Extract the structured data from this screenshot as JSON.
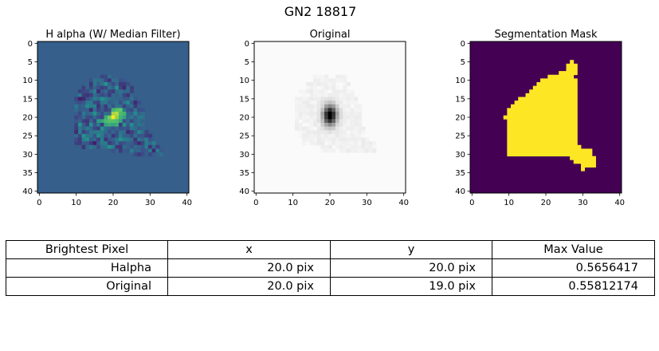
{
  "title": "GN2 18817",
  "chart_data": [
    {
      "type": "heatmap",
      "title": "H alpha (W/ Median Filter)",
      "colormap": "viridis",
      "xlim": [
        0,
        40
      ],
      "ylim": [
        40,
        0
      ],
      "xticks": [
        0,
        10,
        20,
        30,
        40
      ],
      "yticks": [
        0,
        5,
        10,
        15,
        20,
        25,
        30,
        35,
        40
      ],
      "background_value": 0.0,
      "peak": {
        "x": 20,
        "y": 20,
        "value": 0.5656417
      },
      "region_rows": [
        [
          9,
          17,
          19
        ],
        [
          10,
          14,
          23
        ],
        [
          11,
          13,
          24
        ],
        [
          12,
          12,
          25
        ],
        [
          13,
          11,
          25
        ],
        [
          14,
          10,
          26
        ],
        [
          15,
          10,
          26
        ],
        [
          16,
          10,
          27
        ],
        [
          17,
          10,
          27
        ],
        [
          18,
          10,
          28
        ],
        [
          19,
          10,
          28
        ],
        [
          20,
          10,
          28
        ],
        [
          21,
          10,
          28
        ],
        [
          22,
          10,
          28
        ],
        [
          23,
          10,
          28
        ],
        [
          24,
          10,
          29
        ],
        [
          25,
          10,
          30
        ],
        [
          26,
          10,
          30
        ],
        [
          27,
          10,
          31
        ],
        [
          28,
          10,
          32
        ],
        [
          29,
          19,
          33
        ],
        [
          30,
          26,
          33
        ]
      ],
      "hot_pixels": [
        {
          "x": 20,
          "y": 20,
          "v": 1.0
        },
        {
          "x": 21,
          "y": 19,
          "v": 0.85
        },
        {
          "x": 20,
          "y": 19,
          "v": 0.8
        },
        {
          "x": 21,
          "y": 20,
          "v": 0.75
        },
        {
          "x": 19,
          "y": 20,
          "v": 0.7
        },
        {
          "x": 22,
          "y": 18,
          "v": 0.65
        },
        {
          "x": 19,
          "y": 21,
          "v": 0.6
        },
        {
          "x": 20,
          "y": 21,
          "v": 0.6
        },
        {
          "x": 21,
          "y": 18,
          "v": 0.6
        },
        {
          "x": 22,
          "y": 19,
          "v": 0.55
        },
        {
          "x": 18,
          "y": 21,
          "v": 0.55
        },
        {
          "x": 20,
          "y": 18,
          "v": 0.5
        },
        {
          "x": 23,
          "y": 19,
          "v": 0.5
        },
        {
          "x": 22,
          "y": 20,
          "v": 0.5
        },
        {
          "x": 18,
          "y": 20,
          "v": 0.45
        },
        {
          "x": 19,
          "y": 22,
          "v": 0.45
        },
        {
          "x": 21,
          "y": 22,
          "v": 0.45
        },
        {
          "x": 17,
          "y": 21,
          "v": 0.4
        },
        {
          "x": 23,
          "y": 20,
          "v": 0.4
        },
        {
          "x": 22,
          "y": 21,
          "v": 0.4
        },
        {
          "x": 18,
          "y": 22,
          "v": 0.4
        },
        {
          "x": 21,
          "y": 21,
          "v": 0.55
        },
        {
          "x": 16,
          "y": 21,
          "v": 0.35
        },
        {
          "x": 20,
          "y": 22,
          "v": 0.4
        },
        {
          "x": 18,
          "y": 11,
          "v": 0.3
        },
        {
          "x": 21,
          "y": 12,
          "v": 0.3
        },
        {
          "x": 17,
          "y": 15,
          "v": 0.28
        },
        {
          "x": 15,
          "y": 19,
          "v": 0.3
        },
        {
          "x": 13,
          "y": 17,
          "v": 0.25
        },
        {
          "x": 12,
          "y": 25,
          "v": 0.3
        },
        {
          "x": 13,
          "y": 26,
          "v": 0.28
        },
        {
          "x": 24,
          "y": 16,
          "v": 0.25
        },
        {
          "x": 25,
          "y": 22,
          "v": 0.28
        },
        {
          "x": 16,
          "y": 25,
          "v": 0.27
        },
        {
          "x": 27,
          "y": 24,
          "v": 0.25
        },
        {
          "x": 19,
          "y": 28,
          "v": 0.3
        },
        {
          "x": 22,
          "y": 26,
          "v": 0.3
        },
        {
          "x": 14,
          "y": 22,
          "v": 0.28
        },
        {
          "x": 11,
          "y": 22,
          "v": 0.3
        },
        {
          "x": 26,
          "y": 19,
          "v": 0.25
        },
        {
          "x": 17,
          "y": 23,
          "v": 0.3
        },
        {
          "x": 23,
          "y": 22,
          "v": 0.3
        },
        {
          "x": 11,
          "y": 15,
          "v": -0.3
        },
        {
          "x": 12,
          "y": 15,
          "v": -0.25
        },
        {
          "x": 13,
          "y": 14,
          "v": -0.2
        },
        {
          "x": 14,
          "y": 18,
          "v": -0.25
        },
        {
          "x": 16,
          "y": 17,
          "v": -0.2
        },
        {
          "x": 23,
          "y": 12,
          "v": -0.25
        },
        {
          "x": 24,
          "y": 14,
          "v": -0.2
        },
        {
          "x": 24,
          "y": 24,
          "v": -0.25
        },
        {
          "x": 26,
          "y": 26,
          "v": -0.2
        },
        {
          "x": 15,
          "y": 27,
          "v": -0.3
        },
        {
          "x": 10,
          "y": 24,
          "v": -0.25
        },
        {
          "x": 12,
          "y": 28,
          "v": -0.2
        },
        {
          "x": 19,
          "y": 10,
          "v": -0.2
        },
        {
          "x": 26,
          "y": 16,
          "v": -0.25
        },
        {
          "x": 22,
          "y": 28,
          "v": -0.2
        },
        {
          "x": 16,
          "y": 13,
          "v": -0.25
        },
        {
          "x": 20,
          "y": 25,
          "v": -0.2
        },
        {
          "x": 14,
          "y": 11,
          "v": -0.2
        },
        {
          "x": 27,
          "y": 27,
          "v": -0.25
        },
        {
          "x": 30,
          "y": 28,
          "v": -0.2
        },
        {
          "x": 31,
          "y": 29,
          "v": -0.25
        },
        {
          "x": 18,
          "y": 26,
          "v": -0.2
        },
        {
          "x": 13,
          "y": 21,
          "v": -0.2
        }
      ]
    },
    {
      "type": "heatmap",
      "title": "Original",
      "colormap": "gray_r",
      "xlim": [
        0,
        40
      ],
      "ylim": [
        40,
        0
      ],
      "xticks": [
        0,
        10,
        20,
        30,
        40
      ],
      "yticks": [
        0,
        5,
        10,
        15,
        20,
        25,
        30,
        35,
        40
      ],
      "peak": {
        "x": 20,
        "y": 19,
        "value": 0.55812174
      },
      "profile": {
        "center_x": 20.0,
        "center_y": 19.5,
        "sigma_x": 1.3,
        "sigma_y": 1.9
      },
      "halo_rows": [
        [
          10,
          16,
          24
        ],
        [
          12,
          14,
          25
        ],
        [
          14,
          12,
          26
        ],
        [
          16,
          11,
          27
        ],
        [
          18,
          11,
          28
        ],
        [
          20,
          11,
          28
        ],
        [
          22,
          11,
          28
        ],
        [
          24,
          12,
          29
        ],
        [
          26,
          13,
          30
        ],
        [
          28,
          18,
          32
        ]
      ]
    },
    {
      "type": "heatmap",
      "title": "Segmentation Mask",
      "colormap": "viridis",
      "xlim": [
        0,
        40
      ],
      "ylim": [
        40,
        0
      ],
      "xticks": [
        0,
        10,
        20,
        30,
        40
      ],
      "yticks": [
        0,
        5,
        10,
        15,
        20,
        25,
        30,
        35,
        40
      ],
      "values": [
        0,
        1
      ],
      "mask_rows": [
        [
          5,
          27,
          27
        ],
        [
          6,
          26,
          28
        ],
        [
          7,
          26,
          28
        ],
        [
          8,
          24,
          28
        ],
        [
          9,
          21,
          27
        ],
        [
          10,
          19,
          28
        ],
        [
          11,
          18,
          28
        ],
        [
          12,
          17,
          28
        ],
        [
          13,
          16,
          28
        ],
        [
          14,
          15,
          28
        ],
        [
          15,
          13,
          28
        ],
        [
          16,
          12,
          28
        ],
        [
          17,
          11,
          28
        ],
        [
          18,
          10,
          28
        ],
        [
          19,
          10,
          28
        ],
        [
          20,
          9,
          28
        ],
        [
          21,
          10,
          28
        ],
        [
          22,
          10,
          28
        ],
        [
          23,
          10,
          28
        ],
        [
          24,
          10,
          28
        ],
        [
          25,
          10,
          28
        ],
        [
          26,
          10,
          28
        ],
        [
          27,
          10,
          28
        ],
        [
          28,
          10,
          29
        ],
        [
          29,
          10,
          32
        ],
        [
          30,
          10,
          32
        ],
        [
          31,
          27,
          33
        ],
        [
          32,
          28,
          33
        ],
        [
          33,
          30,
          33
        ],
        [
          34,
          30,
          30
        ]
      ]
    }
  ],
  "table": {
    "headers": [
      "Brightest Pixel",
      "x",
      "y",
      "Max Value"
    ],
    "rows": [
      [
        "Halpha",
        "20.0 pix",
        "20.0 pix",
        "0.5656417"
      ],
      [
        "Original",
        "20.0 pix",
        "19.0 pix",
        "0.55812174"
      ]
    ]
  }
}
